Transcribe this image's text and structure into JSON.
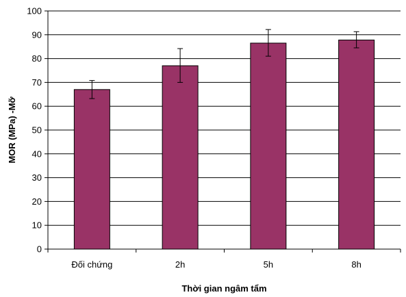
{
  "chart_data": {
    "type": "bar",
    "title": "",
    "xlabel": "Thời gian ngâm tẩm",
    "ylabel": "MOR (MPa) -Mỡ",
    "categories": [
      "Đối chứng",
      "2h",
      "5h",
      "8h"
    ],
    "values": [
      67,
      77,
      86.5,
      87.8
    ],
    "error_bars": [
      {
        "low": 63.2,
        "high": 70.8
      },
      {
        "low": 70,
        "high": 84.2
      },
      {
        "low": 81,
        "high": 92.2
      },
      {
        "low": 84.5,
        "high": 91.3
      }
    ],
    "ylim": [
      0,
      100
    ],
    "yticks": [
      0,
      10,
      20,
      30,
      40,
      50,
      60,
      70,
      80,
      90,
      100
    ],
    "grid": true,
    "legend": "none",
    "bar_color": "#993366",
    "bar_edge_color": "#000000"
  }
}
